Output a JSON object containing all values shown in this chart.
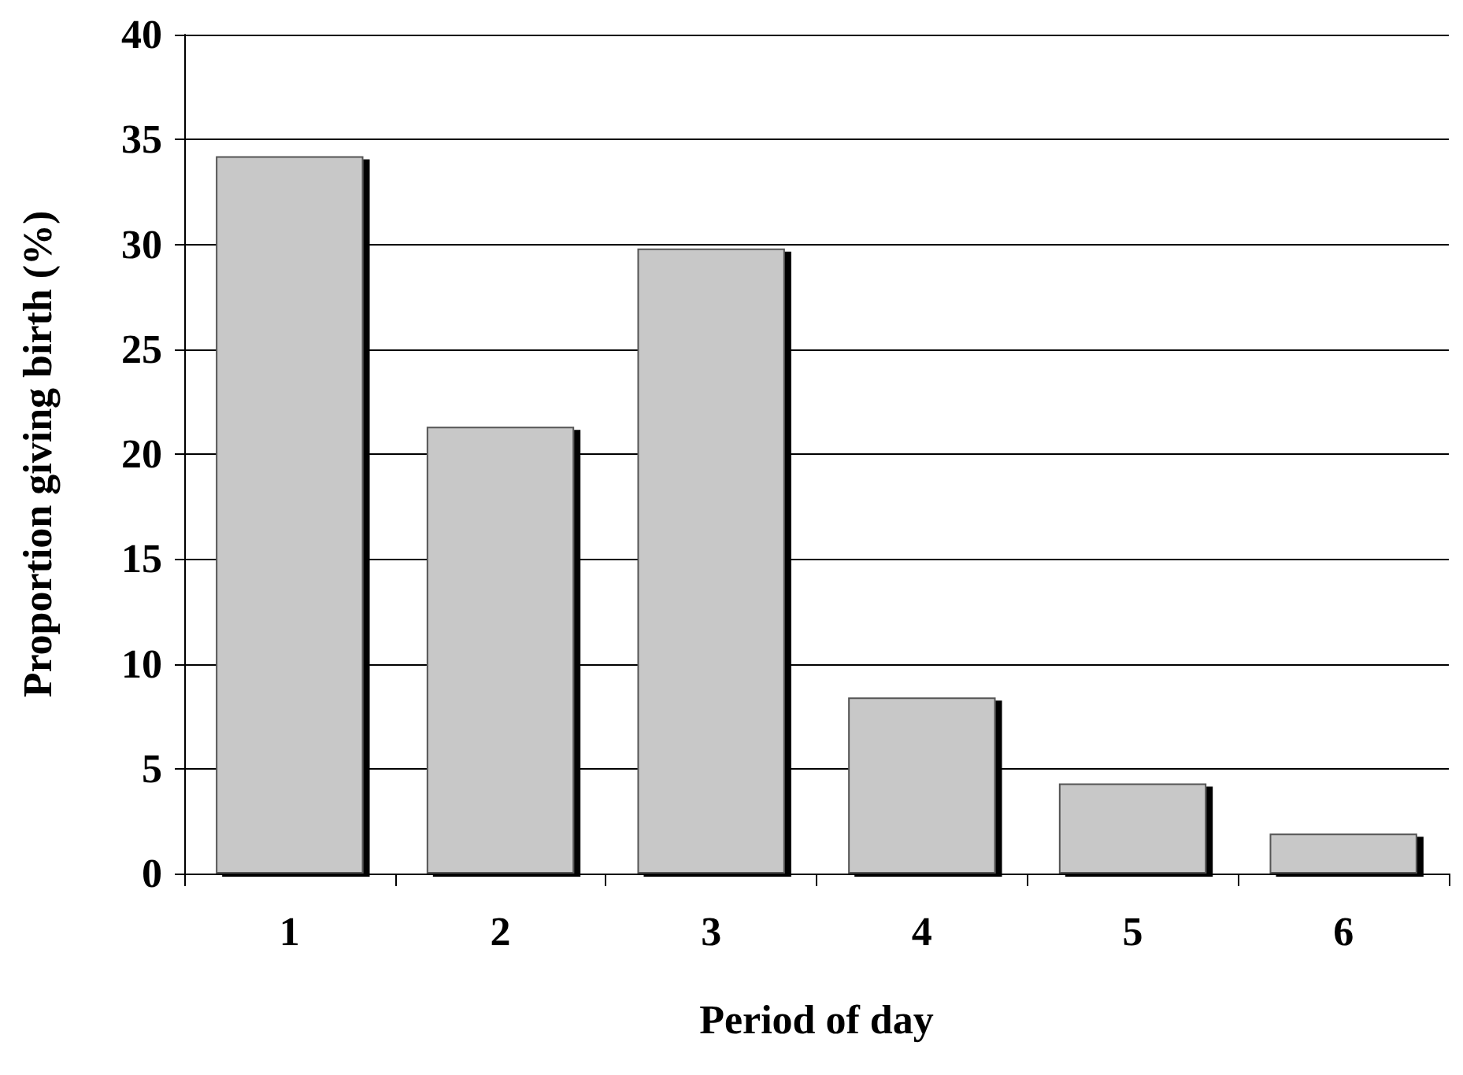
{
  "chart_data": {
    "type": "bar",
    "xlabel": "Period of day",
    "ylabel": "Proportion giving birth (%)",
    "categories": [
      "1",
      "2",
      "3",
      "4",
      "5",
      "6"
    ],
    "values": [
      34.2,
      21.3,
      29.8,
      8.4,
      4.3,
      1.9
    ],
    "color": "#c8c8c8",
    "ylim": [
      0,
      40
    ],
    "yticks": [
      0,
      5,
      10,
      15,
      20,
      25,
      30,
      35,
      40
    ],
    "grid": "y"
  }
}
